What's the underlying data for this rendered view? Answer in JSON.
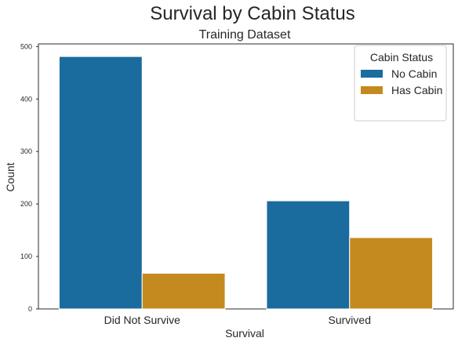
{
  "chart_data": {
    "type": "bar",
    "suptitle": "Survival by Cabin Status",
    "title": "Training Dataset",
    "xlabel": "Survival",
    "ylabel": "Count",
    "categories": [
      "Did Not Survive",
      "Survived"
    ],
    "series": [
      {
        "name": "No Cabin",
        "color": "#1a6b9e",
        "values": [
          481,
          206
        ]
      },
      {
        "name": "Has Cabin",
        "color": "#c58a1f",
        "values": [
          68,
          136
        ]
      }
    ],
    "ylim": [
      0,
      505
    ],
    "yticks": [
      0,
      100,
      200,
      300,
      400,
      500
    ],
    "legend": {
      "title": "Cabin Status",
      "placement": "upper-right"
    },
    "grid": false
  }
}
